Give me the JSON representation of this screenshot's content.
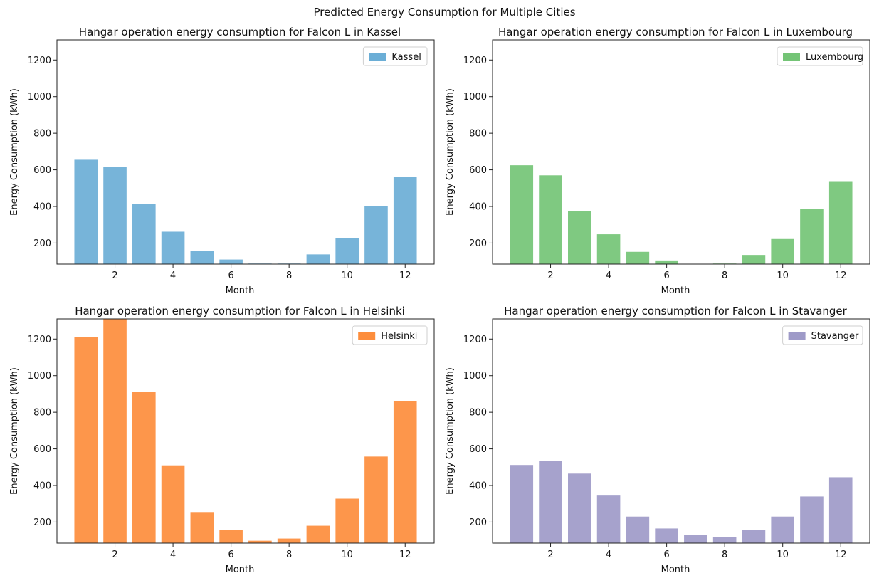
{
  "figure": {
    "title": "Predicted Energy Consumption for Multiple Cities"
  },
  "chart_data": [
    {
      "type": "bar",
      "title": "Hangar operation energy consumption for Falcon L in Kassel",
      "xlabel": "Month",
      "ylabel": "Energy Consumption (kWh)",
      "x": [
        1,
        2,
        3,
        4,
        5,
        6,
        7,
        8,
        9,
        10,
        11,
        12
      ],
      "series": [
        {
          "name": "Kassel",
          "color": "#6baed6",
          "values": [
            655,
            615,
            415,
            262,
            158,
            110,
            88,
            88,
            138,
            228,
            402,
            560
          ]
        }
      ],
      "xlim": [
        0,
        13
      ],
      "ylim": [
        85,
        1310
      ],
      "xticks": [
        2,
        4,
        6,
        8,
        10,
        12
      ],
      "yticks": [
        200,
        400,
        600,
        800,
        1000,
        1200
      ],
      "legend": "top-right",
      "grid": false
    },
    {
      "type": "bar",
      "title": "Hangar operation energy consumption for Falcon L in Luxembourg",
      "xlabel": "Month",
      "ylabel": "Energy Consumption (kWh)",
      "x": [
        1,
        2,
        3,
        4,
        5,
        6,
        7,
        8,
        9,
        10,
        11,
        12
      ],
      "series": [
        {
          "name": "Luxembourg",
          "color": "#74c476",
          "values": [
            625,
            570,
            375,
            248,
            152,
            105,
            78,
            88,
            135,
            222,
            388,
            538
          ]
        }
      ],
      "xlim": [
        0,
        13
      ],
      "ylim": [
        85,
        1310
      ],
      "xticks": [
        2,
        4,
        6,
        8,
        10,
        12
      ],
      "yticks": [
        200,
        400,
        600,
        800,
        1000,
        1200
      ],
      "legend": "top-right",
      "grid": false
    },
    {
      "type": "bar",
      "title": "Hangar operation energy consumption for Falcon L in Helsinki",
      "xlabel": "Month",
      "ylabel": "Energy Consumption (kWh)",
      "x": [
        1,
        2,
        3,
        4,
        5,
        6,
        7,
        8,
        9,
        10,
        11,
        12
      ],
      "series": [
        {
          "name": "Helsinki",
          "color": "#fd8d3c",
          "values": [
            1210,
            1310,
            910,
            510,
            255,
            155,
            98,
            110,
            180,
            328,
            558,
            860
          ]
        }
      ],
      "xlim": [
        0,
        13
      ],
      "ylim": [
        85,
        1310
      ],
      "xticks": [
        2,
        4,
        6,
        8,
        10,
        12
      ],
      "yticks": [
        200,
        400,
        600,
        800,
        1000,
        1200
      ],
      "legend": "top-right",
      "grid": false
    },
    {
      "type": "bar",
      "title": "Hangar operation energy consumption for Falcon L in Stavanger",
      "xlabel": "Month",
      "ylabel": "Energy Consumption (kWh)",
      "x": [
        1,
        2,
        3,
        4,
        5,
        6,
        7,
        8,
        9,
        10,
        11,
        12
      ],
      "series": [
        {
          "name": "Stavanger",
          "color": "#9e9ac8",
          "values": [
            512,
            535,
            465,
            345,
            230,
            165,
            130,
            120,
            155,
            230,
            340,
            445
          ]
        }
      ],
      "xlim": [
        0,
        13
      ],
      "ylim": [
        85,
        1310
      ],
      "xticks": [
        2,
        4,
        6,
        8,
        10,
        12
      ],
      "yticks": [
        200,
        400,
        600,
        800,
        1000,
        1200
      ],
      "legend": "top-right",
      "grid": false
    }
  ]
}
